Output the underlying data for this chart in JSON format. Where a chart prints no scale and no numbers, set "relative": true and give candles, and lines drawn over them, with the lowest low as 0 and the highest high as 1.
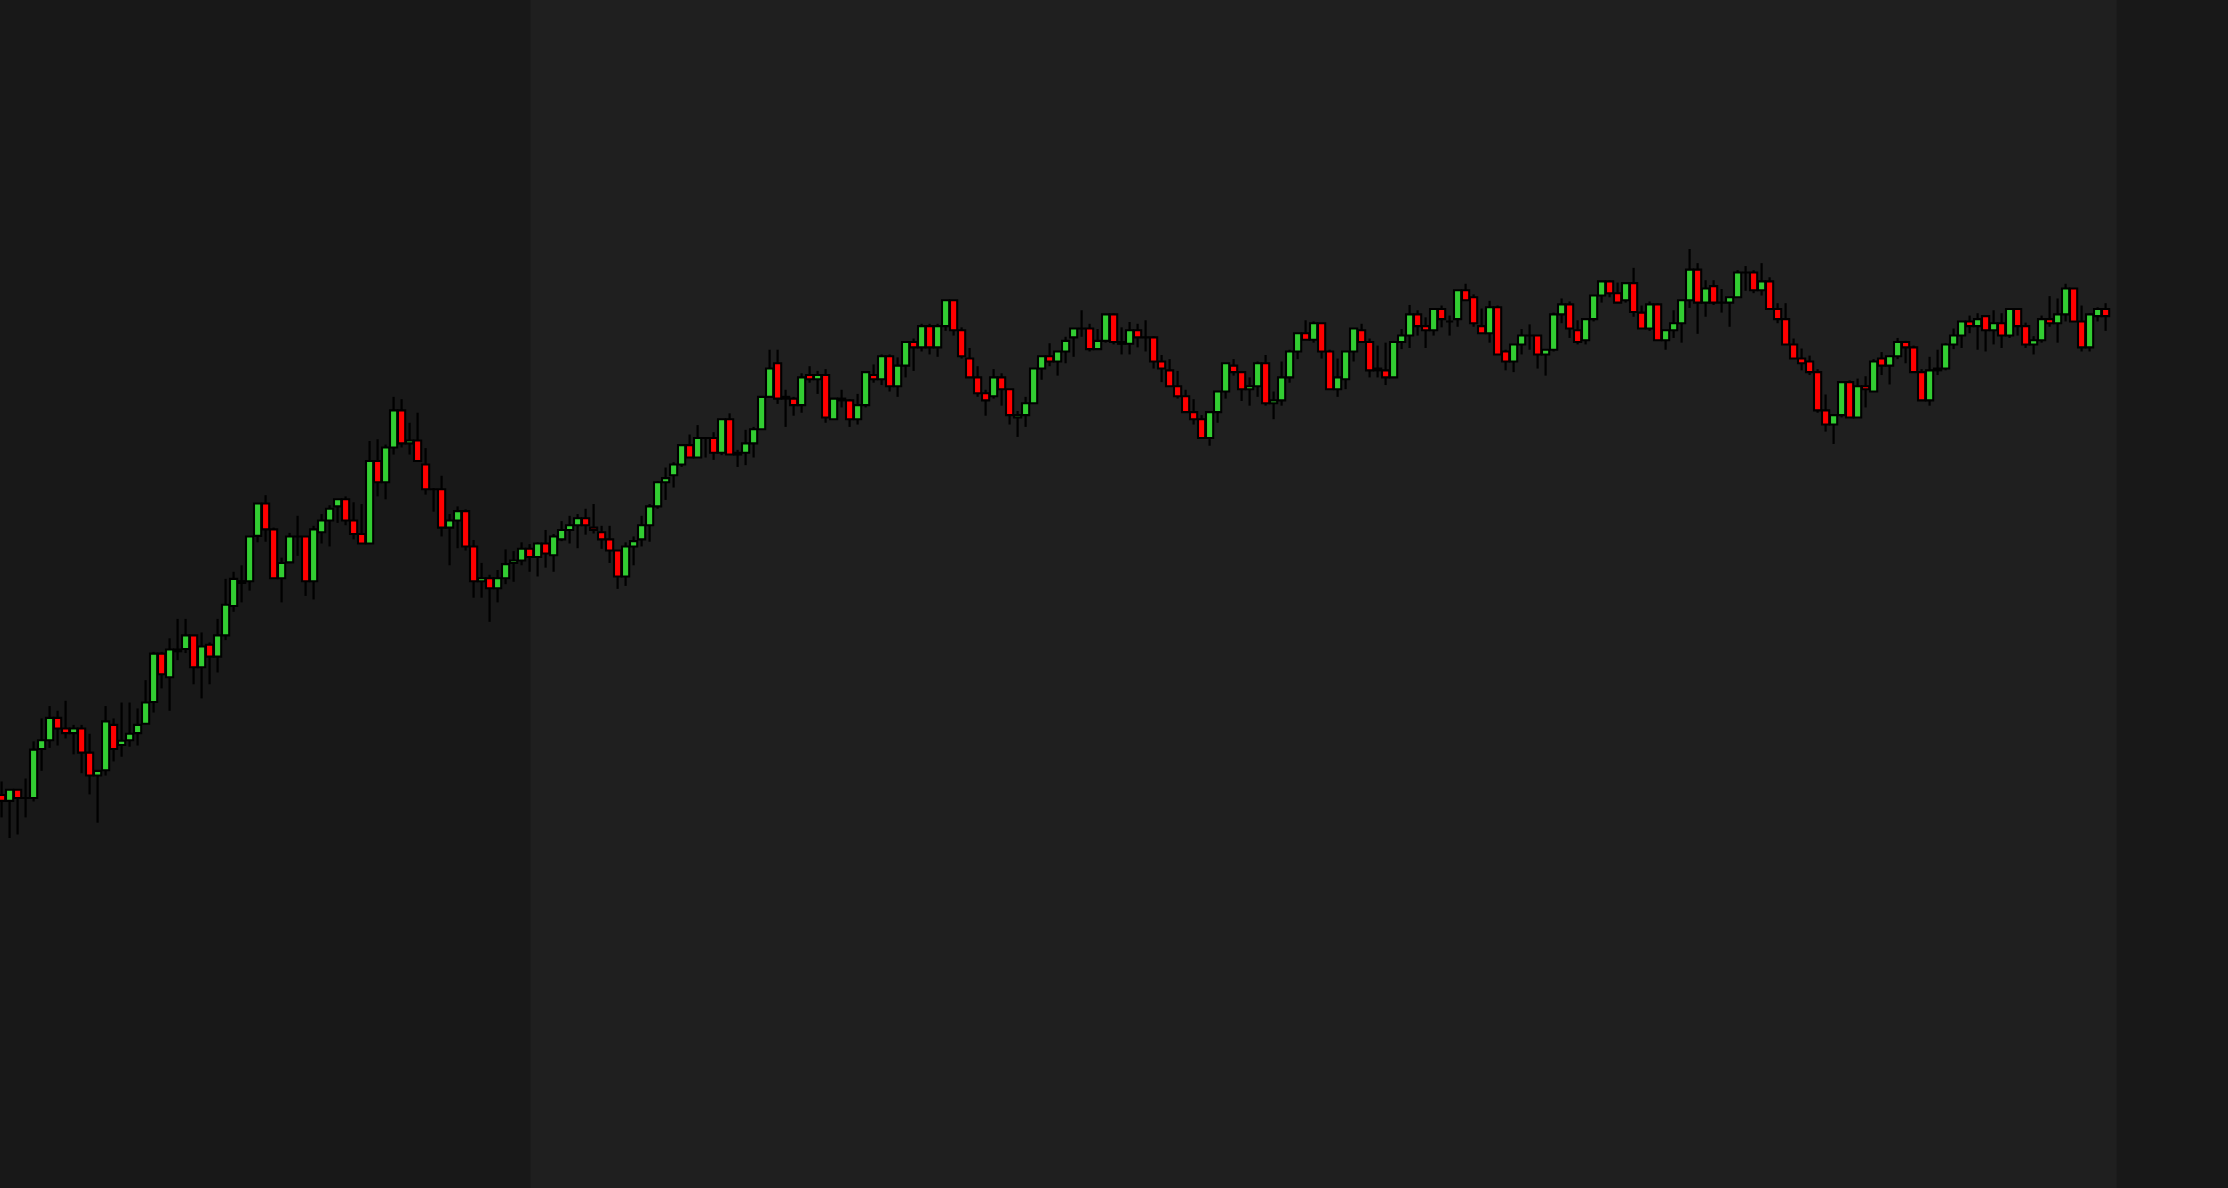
{
  "chart_data": {
    "type": "candlestick",
    "relative": true,
    "categories": [
      null,
      null,
      null,
      null,
      null,
      null,
      null,
      null,
      null,
      null,
      null,
      null,
      null,
      null,
      null,
      null,
      null,
      null,
      null,
      null,
      null,
      null,
      null,
      null,
      null,
      null,
      null,
      null,
      null,
      null,
      null,
      null,
      null,
      null,
      null,
      null,
      null,
      null,
      null,
      null,
      null,
      null,
      null,
      null,
      null,
      null,
      null,
      null,
      null,
      null,
      null,
      null,
      null,
      null,
      null,
      null,
      null,
      null,
      null,
      null,
      null,
      null,
      null,
      null,
      null,
      null,
      null,
      null,
      null,
      null,
      null,
      null,
      null,
      null,
      null,
      null,
      null,
      null,
      null,
      null,
      null,
      null,
      null,
      null,
      null,
      null,
      null,
      null,
      null,
      null,
      null,
      null,
      null,
      null,
      null,
      null,
      null,
      null,
      null,
      null,
      null,
      null,
      null,
      null,
      null,
      null,
      null,
      null,
      null,
      null,
      null,
      null,
      null,
      null,
      null,
      null,
      null,
      null,
      null,
      null,
      null,
      null,
      null,
      null,
      null,
      null,
      null,
      null,
      null,
      null,
      null,
      null,
      null,
      null,
      null,
      null,
      null,
      null,
      null,
      null,
      null,
      null,
      null,
      null,
      null,
      null,
      null,
      null,
      null,
      null,
      null,
      null,
      null,
      null,
      null,
      null,
      null,
      null,
      null,
      null,
      null,
      null,
      null,
      null,
      null,
      null,
      null,
      null,
      null,
      null,
      null,
      null,
      null,
      null,
      null,
      null,
      null,
      null,
      null,
      null,
      null,
      null,
      null,
      null,
      null,
      null,
      null,
      null,
      null,
      null,
      null,
      null,
      null,
      null,
      null,
      null,
      null,
      null,
      null,
      null,
      null,
      null,
      null,
      null,
      null,
      null,
      null,
      null,
      null,
      null,
      null,
      null,
      null,
      null,
      null,
      null,
      null,
      null,
      null,
      null,
      null,
      null,
      null,
      null,
      null,
      null,
      null,
      null,
      null,
      null,
      null,
      null,
      null,
      null,
      null,
      null,
      null,
      null,
      null,
      null,
      null,
      null,
      null,
      null,
      null,
      null,
      null,
      null,
      null,
      null,
      null,
      null,
      null,
      null,
      null,
      null,
      null,
      null,
      null,
      null,
      null,
      null,
      null,
      null
    ],
    "ohlc": [
      [
        0.073,
        0.096,
        0.035,
        0.063
      ],
      [
        0.063,
        0.082,
        0,
        0.082
      ],
      [
        0.082,
        0.082,
        0.006,
        0.068
      ],
      [
        0.068,
        0.101,
        0.035,
        0.068
      ],
      [
        0.068,
        0.164,
        0.062,
        0.15
      ],
      [
        0.151,
        0.203,
        0.114,
        0.166
      ],
      [
        0.166,
        0.224,
        0.153,
        0.204
      ],
      [
        0.204,
        0.216,
        0.157,
        0.186
      ],
      [
        0.186,
        0.233,
        0.169,
        0.178
      ],
      [
        0.178,
        0.192,
        0.142,
        0.186
      ],
      [
        0.186,
        0.192,
        0.11,
        0.145
      ],
      [
        0.145,
        0.177,
        0.074,
        0.106
      ],
      [
        0.106,
        0.114,
        0.026,
        0.114
      ],
      [
        0.115,
        0.224,
        0.106,
        0.198
      ],
      [
        0.192,
        0.203,
        0.13,
        0.151
      ],
      [
        0.158,
        0.23,
        0.138,
        0.165
      ],
      [
        0.166,
        0.23,
        0.155,
        0.177
      ],
      [
        0.178,
        0.22,
        0.157,
        0.192
      ],
      [
        0.194,
        0.268,
        0.194,
        0.23
      ],
      [
        0.231,
        0.316,
        0.213,
        0.313
      ],
      [
        0.313,
        0.316,
        0.254,
        0.278
      ],
      [
        0.273,
        0.339,
        0.216,
        0.32
      ],
      [
        0.32,
        0.372,
        0.302,
        0.317
      ],
      [
        0.321,
        0.372,
        0.314,
        0.344
      ],
      [
        0.344,
        0.344,
        0.261,
        0.29
      ],
      [
        0.29,
        0.349,
        0.237,
        0.325
      ],
      [
        0.328,
        0.332,
        0.261,
        0.308
      ],
      [
        0.308,
        0.372,
        0.281,
        0.344
      ],
      [
        0.344,
        0.44,
        0.336,
        0.396
      ],
      [
        0.394,
        0.452,
        0.384,
        0.44
      ],
      [
        0.433,
        0.463,
        0.4,
        0.436
      ],
      [
        0.436,
        0.512,
        0.42,
        0.512
      ],
      [
        0.513,
        0.568,
        0.502,
        0.568
      ],
      [
        0.568,
        0.582,
        0.503,
        0.524
      ],
      [
        0.524,
        0.527,
        0.441,
        0.441
      ],
      [
        0.441,
        0.476,
        0.4,
        0.467
      ],
      [
        0.468,
        0.518,
        0.468,
        0.512
      ],
      [
        0.512,
        0.547,
        0.479,
        0.512
      ],
      [
        0.512,
        0.512,
        0.411,
        0.436
      ],
      [
        0.436,
        0.53,
        0.405,
        0.524
      ],
      [
        0.519,
        0.55,
        0.5,
        0.539
      ],
      [
        0.539,
        0.565,
        0.495,
        0.559
      ],
      [
        0.563,
        0.575,
        0.535,
        0.575
      ],
      [
        0.575,
        0.58,
        0.531,
        0.539
      ],
      [
        0.539,
        0.57,
        0.507,
        0.516
      ],
      [
        0.516,
        0.567,
        0.5,
        0.5
      ],
      [
        0.5,
        0.674,
        0.5,
        0.64
      ],
      [
        0.64,
        0.677,
        0.58,
        0.604
      ],
      [
        0.604,
        0.668,
        0.575,
        0.663
      ],
      [
        0.663,
        0.749,
        0.651,
        0.726
      ],
      [
        0.726,
        0.745,
        0.663,
        0.67
      ],
      [
        0.67,
        0.705,
        0.651,
        0.675
      ],
      [
        0.675,
        0.722,
        0.64,
        0.64
      ],
      [
        0.634,
        0.662,
        0.583,
        0.592
      ],
      [
        0.592,
        0.594,
        0.554,
        0.592
      ],
      [
        0.592,
        0.615,
        0.512,
        0.527
      ],
      [
        0.527,
        0.55,
        0.463,
        0.539
      ],
      [
        0.539,
        0.563,
        0.492,
        0.555
      ],
      [
        0.555,
        0.558,
        0.488,
        0.495
      ],
      [
        0.495,
        0.506,
        0.408,
        0.436
      ],
      [
        0.436,
        0.467,
        0.408,
        0.441
      ],
      [
        0.441,
        0.447,
        0.367,
        0.424
      ],
      [
        0.424,
        0.455,
        0.4,
        0.441
      ],
      [
        0.441,
        0.49,
        0.431,
        0.465
      ],
      [
        0.467,
        0.487,
        0.435,
        0.471
      ],
      [
        0.471,
        0.502,
        0.463,
        0.491
      ],
      [
        0.491,
        0.499,
        0.452,
        0.477
      ],
      [
        0.477,
        0.502,
        0.444,
        0.5
      ],
      [
        0.5,
        0.523,
        0.459,
        0.483
      ],
      [
        0.48,
        0.516,
        0.452,
        0.512
      ],
      [
        0.507,
        0.538,
        0.504,
        0.523
      ],
      [
        0.523,
        0.547,
        0.5,
        0.531
      ],
      [
        0.531,
        0.55,
        0.492,
        0.543
      ],
      [
        0.543,
        0.559,
        0.515,
        0.531
      ],
      [
        0.527,
        0.567,
        0.517,
        0.523
      ],
      [
        0.519,
        0.53,
        0.491,
        0.507
      ],
      [
        0.507,
        0.53,
        0.467,
        0.488
      ],
      [
        0.488,
        0.488,
        0.423,
        0.444
      ],
      [
        0.444,
        0.502,
        0.428,
        0.495
      ],
      [
        0.495,
        0.512,
        0.463,
        0.504
      ],
      [
        0.507,
        0.547,
        0.495,
        0.531
      ],
      [
        0.531,
        0.567,
        0.503,
        0.563
      ],
      [
        0.563,
        0.606,
        0.559,
        0.604
      ],
      [
        0.604,
        0.629,
        0.574,
        0.611
      ],
      [
        0.616,
        0.638,
        0.595,
        0.634
      ],
      [
        0.634,
        0.668,
        0.63,
        0.667
      ],
      [
        0.667,
        0.685,
        0.646,
        0.646
      ],
      [
        0.646,
        0.701,
        0.646,
        0.679
      ],
      [
        0.679,
        0.679,
        0.646,
        0.679
      ],
      [
        0.679,
        0.689,
        0.642,
        0.654
      ],
      [
        0.654,
        0.711,
        0.65,
        0.711
      ],
      [
        0.711,
        0.721,
        0.651,
        0.651
      ],
      [
        0.651,
        0.659,
        0.63,
        0.654
      ],
      [
        0.654,
        0.693,
        0.633,
        0.67
      ],
      [
        0.67,
        0.698,
        0.646,
        0.694
      ],
      [
        0.694,
        0.749,
        0.694,
        0.749
      ],
      [
        0.749,
        0.829,
        0.749,
        0.797
      ],
      [
        0.806,
        0.829,
        0.737,
        0.746
      ],
      [
        0.749,
        0.761,
        0.698,
        0.746
      ],
      [
        0.746,
        0.749,
        0.717,
        0.735
      ],
      [
        0.735,
        0.789,
        0.722,
        0.782
      ],
      [
        0.786,
        0.801,
        0.773,
        0.779
      ],
      [
        0.779,
        0.793,
        0.754,
        0.786
      ],
      [
        0.786,
        0.796,
        0.705,
        0.714
      ],
      [
        0.711,
        0.746,
        0.711,
        0.746
      ],
      [
        0.746,
        0.761,
        0.731,
        0.743
      ],
      [
        0.743,
        0.745,
        0.698,
        0.711
      ],
      [
        0.711,
        0.754,
        0.702,
        0.735
      ],
      [
        0.735,
        0.791,
        0.731,
        0.791
      ],
      [
        0.786,
        0.804,
        0.773,
        0.779
      ],
      [
        0.779,
        0.821,
        0.769,
        0.818
      ],
      [
        0.818,
        0.821,
        0.758,
        0.767
      ],
      [
        0.767,
        0.816,
        0.749,
        0.802
      ],
      [
        0.802,
        0.842,
        0.782,
        0.842
      ],
      [
        0.842,
        0.848,
        0.793,
        0.833
      ],
      [
        0.833,
        0.873,
        0.826,
        0.869
      ],
      [
        0.869,
        0.873,
        0.821,
        0.833
      ],
      [
        0.833,
        0.873,
        0.817,
        0.869
      ],
      [
        0.869,
        0.913,
        0.861,
        0.913
      ],
      [
        0.913,
        0.913,
        0.853,
        0.862
      ],
      [
        0.862,
        0.867,
        0.814,
        0.818
      ],
      [
        0.814,
        0.832,
        0.782,
        0.782
      ],
      [
        0.782,
        0.801,
        0.749,
        0.755
      ],
      [
        0.755,
        0.761,
        0.717,
        0.743
      ],
      [
        0.75,
        0.796,
        0.746,
        0.782
      ],
      [
        0.782,
        0.789,
        0.734,
        0.762
      ],
      [
        0.762,
        0.762,
        0.702,
        0.718
      ],
      [
        0.714,
        0.725,
        0.681,
        0.718
      ],
      [
        0.718,
        0.749,
        0.698,
        0.738
      ],
      [
        0.738,
        0.797,
        0.738,
        0.797
      ],
      [
        0.797,
        0.818,
        0.778,
        0.818
      ],
      [
        0.818,
        0.84,
        0.801,
        0.809
      ],
      [
        0.809,
        0.826,
        0.785,
        0.826
      ],
      [
        0.826,
        0.851,
        0.806,
        0.844
      ],
      [
        0.85,
        0.865,
        0.817,
        0.865
      ],
      [
        0.865,
        0.896,
        0.851,
        0.865
      ],
      [
        0.865,
        0.873,
        0.826,
        0.83
      ],
      [
        0.83,
        0.864,
        0.83,
        0.844
      ],
      [
        0.844,
        0.889,
        0.841,
        0.889
      ],
      [
        0.889,
        0.891,
        0.838,
        0.842
      ],
      [
        0.842,
        0.867,
        0.821,
        0.839
      ],
      [
        0.839,
        0.876,
        0.821,
        0.862
      ],
      [
        0.862,
        0.873,
        0.833,
        0.85
      ],
      [
        0.85,
        0.879,
        0.826,
        0.85
      ],
      [
        0.85,
        0.852,
        0.797,
        0.809
      ],
      [
        0.809,
        0.82,
        0.774,
        0.797
      ],
      [
        0.794,
        0.813,
        0.767,
        0.767
      ],
      [
        0.767,
        0.793,
        0.746,
        0.75
      ],
      [
        0.75,
        0.761,
        0.723,
        0.723
      ],
      [
        0.723,
        0.745,
        0.702,
        0.711
      ],
      [
        0.711,
        0.718,
        0.679,
        0.679
      ],
      [
        0.679,
        0.725,
        0.666,
        0.723
      ],
      [
        0.723,
        0.758,
        0.705,
        0.758
      ],
      [
        0.758,
        0.806,
        0.746,
        0.806
      ],
      [
        0.802,
        0.813,
        0.785,
        0.791
      ],
      [
        0.791,
        0.793,
        0.742,
        0.762
      ],
      [
        0.762,
        0.782,
        0.734,
        0.767
      ],
      [
        0.767,
        0.809,
        0.749,
        0.806
      ],
      [
        0.806,
        0.82,
        0.734,
        0.738
      ],
      [
        0.738,
        0.758,
        0.711,
        0.743
      ],
      [
        0.743,
        0.809,
        0.734,
        0.782
      ],
      [
        0.782,
        0.829,
        0.773,
        0.826
      ],
      [
        0.826,
        0.857,
        0.813,
        0.857
      ],
      [
        0.857,
        0.879,
        0.846,
        0.846
      ],
      [
        0.846,
        0.877,
        0.841,
        0.874
      ],
      [
        0.874,
        0.874,
        0.814,
        0.826
      ],
      [
        0.826,
        0.829,
        0.762,
        0.762
      ],
      [
        0.762,
        0.814,
        0.749,
        0.782
      ],
      [
        0.779,
        0.826,
        0.762,
        0.826
      ],
      [
        0.826,
        0.865,
        0.809,
        0.865
      ],
      [
        0.862,
        0.873,
        0.842,
        0.842
      ],
      [
        0.842,
        0.848,
        0.782,
        0.794
      ],
      [
        0.794,
        0.836,
        0.782,
        0.797
      ],
      [
        0.794,
        0.841,
        0.769,
        0.782
      ],
      [
        0.782,
        0.844,
        0.782,
        0.842
      ],
      [
        0.842,
        0.864,
        0.83,
        0.853
      ],
      [
        0.853,
        0.905,
        0.832,
        0.889
      ],
      [
        0.889,
        0.896,
        0.853,
        0.869
      ],
      [
        0.869,
        0.884,
        0.832,
        0.862
      ],
      [
        0.862,
        0.899,
        0.853,
        0.898
      ],
      [
        0.898,
        0.904,
        0.867,
        0.881
      ],
      [
        0.877,
        0.887,
        0.853,
        0.877
      ],
      [
        0.881,
        0.93,
        0.868,
        0.93
      ],
      [
        0.93,
        0.941,
        0.913,
        0.913
      ],
      [
        0.918,
        0.923,
        0.868,
        0.874
      ],
      [
        0.869,
        0.899,
        0.857,
        0.857
      ],
      [
        0.857,
        0.912,
        0.841,
        0.901
      ],
      [
        0.901,
        0.904,
        0.821,
        0.821
      ],
      [
        0.826,
        0.829,
        0.794,
        0.809
      ],
      [
        0.809,
        0.838,
        0.791,
        0.838
      ],
      [
        0.838,
        0.864,
        0.821,
        0.853
      ],
      [
        0.853,
        0.872,
        0.829,
        0.853
      ],
      [
        0.853,
        0.853,
        0.797,
        0.821
      ],
      [
        0.821,
        0.829,
        0.785,
        0.829
      ],
      [
        0.829,
        0.892,
        0.826,
        0.889
      ],
      [
        0.889,
        0.916,
        0.874,
        0.906
      ],
      [
        0.906,
        0.911,
        0.849,
        0.865
      ],
      [
        0.862,
        0.879,
        0.838,
        0.842
      ],
      [
        0.845,
        0.881,
        0.838,
        0.881
      ],
      [
        0.881,
        0.921,
        0.877,
        0.921
      ],
      [
        0.921,
        0.945,
        0.909,
        0.945
      ],
      [
        0.945,
        0.947,
        0.918,
        0.925
      ],
      [
        0.925,
        0.943,
        0.909,
        0.909
      ],
      [
        0.913,
        0.942,
        0.909,
        0.942
      ],
      [
        0.942,
        0.968,
        0.885,
        0.893
      ],
      [
        0.892,
        0.904,
        0.865,
        0.865
      ],
      [
        0.865,
        0.911,
        0.861,
        0.906
      ],
      [
        0.906,
        0.908,
        0.845,
        0.845
      ],
      [
        0.845,
        0.862,
        0.829,
        0.862
      ],
      [
        0.862,
        0.896,
        0.849,
        0.874
      ],
      [
        0.874,
        0.913,
        0.841,
        0.913
      ],
      [
        0.913,
        1,
        0.9,
        0.965
      ],
      [
        0.965,
        0.976,
        0.856,
        0.909
      ],
      [
        0.909,
        0.947,
        0.885,
        0.933
      ],
      [
        0.937,
        0.947,
        0.905,
        0.909
      ],
      [
        0.909,
        0.932,
        0.892,
        0.909
      ],
      [
        0.909,
        0.918,
        0.868,
        0.918
      ],
      [
        0.918,
        0.964,
        0.918,
        0.96
      ],
      [
        0.96,
        0.971,
        0.929,
        0.96
      ],
      [
        0.96,
        0.964,
        0.925,
        0.93
      ],
      [
        0.93,
        0.976,
        0.921,
        0.945
      ],
      [
        0.945,
        0.952,
        0.898,
        0.898
      ],
      [
        0.898,
        0.908,
        0.874,
        0.881
      ],
      [
        0.881,
        0.908,
        0.838,
        0.838
      ],
      [
        0.838,
        0.848,
        0.814,
        0.814
      ],
      [
        0.814,
        0.831,
        0.794,
        0.806
      ],
      [
        0.809,
        0.819,
        0.786,
        0.791
      ],
      [
        0.791,
        0.796,
        0.722,
        0.726
      ],
      [
        0.726,
        0.753,
        0.69,
        0.702
      ],
      [
        0.702,
        0.718,
        0.669,
        0.718
      ],
      [
        0.718,
        0.774,
        0.714,
        0.774
      ],
      [
        0.774,
        0.777,
        0.714,
        0.714
      ],
      [
        0.714,
        0.78,
        0.714,
        0.767
      ],
      [
        0.767,
        0.784,
        0.731,
        0.762
      ],
      [
        0.758,
        0.813,
        0.758,
        0.809
      ],
      [
        0.814,
        0.825,
        0.786,
        0.802
      ],
      [
        0.802,
        0.819,
        0.77,
        0.818
      ],
      [
        0.818,
        0.849,
        0.813,
        0.842
      ],
      [
        0.842,
        0.844,
        0.806,
        0.833
      ],
      [
        0.833,
        0.836,
        0.791,
        0.791
      ],
      [
        0.791,
        0.796,
        0.743,
        0.743
      ],
      [
        0.743,
        0.817,
        0.734,
        0.794
      ],
      [
        0.794,
        0.829,
        0.786,
        0.797
      ],
      [
        0.797,
        0.84,
        0.794,
        0.838
      ],
      [
        0.838,
        0.865,
        0.83,
        0.853
      ],
      [
        0.853,
        0.877,
        0.832,
        0.877
      ],
      [
        0.877,
        0.887,
        0.857,
        0.869
      ],
      [
        0.869,
        0.891,
        0.829,
        0.881
      ],
      [
        0.886,
        0.886,
        0.826,
        0.862
      ],
      [
        0.862,
        0.896,
        0.838,
        0.874
      ],
      [
        0.874,
        0.891,
        0.832,
        0.853
      ],
      [
        0.853,
        0.899,
        0.849,
        0.898
      ],
      [
        0.898,
        0.899,
        0.853,
        0.869
      ],
      [
        0.869,
        0.875,
        0.832,
        0.838
      ],
      [
        0.838,
        0.852,
        0.821,
        0.845
      ],
      [
        0.845,
        0.887,
        0.841,
        0.881
      ],
      [
        0.881,
        0.92,
        0.868,
        0.874
      ],
      [
        0.874,
        0.916,
        0.841,
        0.889
      ],
      [
        0.889,
        0.941,
        0.877,
        0.933
      ],
      [
        0.933,
        0.933,
        0.877,
        0.877
      ],
      [
        0.877,
        0.904,
        0.826,
        0.833
      ],
      [
        0.833,
        0.891,
        0.826,
        0.889
      ],
      [
        0.886,
        0.901,
        0.877,
        0.898
      ],
      [
        0.898,
        0.908,
        0.861,
        0.886
      ]
    ],
    "colors": [
      "#ff0000",
      "#32cd32",
      "#ff0000",
      "#000000",
      "#32cd32",
      "#32cd32",
      "#32cd32",
      "#ff0000",
      "#ff0000",
      "#32cd32",
      "#ff0000",
      "#ff0000",
      "#32cd32",
      "#32cd32",
      "#ff0000",
      "#32cd32",
      "#32cd32",
      "#32cd32",
      "#32cd32",
      "#32cd32",
      "#ff0000",
      "#32cd32",
      "#ff0000",
      "#32cd32",
      "#ff0000",
      "#32cd32",
      "#ff0000",
      "#32cd32",
      "#32cd32",
      "#32cd32",
      "#32cd32",
      "#32cd32",
      "#32cd32",
      "#ff0000",
      "#ff0000",
      "#32cd32",
      "#32cd32",
      "#000000",
      "#ff0000",
      "#32cd32",
      "#32cd32",
      "#32cd32",
      "#32cd32",
      "#ff0000",
      "#ff0000",
      "#ff0000",
      "#32cd32",
      "#ff0000",
      "#32cd32",
      "#32cd32",
      "#ff0000",
      "#32cd32",
      "#ff0000",
      "#ff0000",
      "#000000",
      "#ff0000",
      "#32cd32",
      "#32cd32",
      "#ff0000",
      "#ff0000",
      "#32cd32",
      "#ff0000",
      "#32cd32",
      "#32cd32",
      "#32cd32",
      "#32cd32",
      "#ff0000",
      "#32cd32",
      "#ff0000",
      "#32cd32",
      "#32cd32",
      "#32cd32",
      "#32cd32",
      "#ff0000",
      "#ff0000",
      "#ff0000",
      "#ff0000",
      "#ff0000",
      "#32cd32",
      "#32cd32",
      "#32cd32",
      "#32cd32",
      "#32cd32",
      "#32cd32",
      "#32cd32",
      "#32cd32",
      "#ff0000",
      "#32cd32",
      "#000000",
      "#ff0000",
      "#32cd32",
      "#ff0000",
      "#32cd32",
      "#32cd32",
      "#32cd32",
      "#32cd32",
      "#32cd32",
      "#ff0000",
      "#ff0000",
      "#ff0000",
      "#32cd32",
      "#ff0000",
      "#32cd32",
      "#ff0000",
      "#32cd32",
      "#ff0000",
      "#ff0000",
      "#32cd32",
      "#32cd32",
      "#ff0000",
      "#32cd32",
      "#ff0000",
      "#32cd32",
      "#32cd32",
      "#ff0000",
      "#32cd32",
      "#ff0000",
      "#32cd32",
      "#32cd32",
      "#ff0000",
      "#ff0000",
      "#ff0000",
      "#ff0000",
      "#ff0000",
      "#32cd32",
      "#ff0000",
      "#ff0000",
      "#32cd32",
      "#32cd32",
      "#32cd32",
      "#32cd32",
      "#ff0000",
      "#32cd32",
      "#32cd32",
      "#32cd32",
      "#000000",
      "#ff0000",
      "#32cd32",
      "#32cd32",
      "#ff0000",
      "#ff0000",
      "#32cd32",
      "#ff0000",
      "#000000",
      "#ff0000",
      "#ff0000",
      "#ff0000",
      "#ff0000",
      "#ff0000",
      "#ff0000",
      "#ff0000",
      "#32cd32",
      "#32cd32",
      "#32cd32",
      "#ff0000",
      "#ff0000",
      "#32cd32",
      "#32cd32",
      "#ff0000",
      "#32cd32",
      "#32cd32",
      "#32cd32",
      "#32cd32",
      "#ff0000",
      "#32cd32",
      "#ff0000",
      "#ff0000",
      "#32cd32",
      "#32cd32",
      "#32cd32",
      "#ff0000",
      "#ff0000",
      "#32cd32",
      "#ff0000",
      "#32cd32",
      "#32cd32",
      "#32cd32",
      "#ff0000",
      "#ff0000",
      "#32cd32",
      "#ff0000",
      "#000000",
      "#32cd32",
      "#ff0000",
      "#ff0000",
      "#ff0000",
      "#32cd32",
      "#ff0000",
      "#ff0000",
      "#32cd32",
      "#32cd32",
      "#000000",
      "#ff0000",
      "#32cd32",
      "#32cd32",
      "#32cd32",
      "#ff0000",
      "#ff0000",
      "#32cd32",
      "#32cd32",
      "#32cd32",
      "#ff0000",
      "#ff0000",
      "#32cd32",
      "#ff0000",
      "#ff0000",
      "#32cd32",
      "#ff0000",
      "#32cd32",
      "#32cd32",
      "#32cd32",
      "#32cd32",
      "#ff0000",
      "#32cd32",
      "#ff0000",
      "#000000",
      "#32cd32",
      "#32cd32",
      "#000000",
      "#ff0000",
      "#32cd32",
      "#ff0000",
      "#ff0000",
      "#ff0000",
      "#ff0000",
      "#ff0000",
      "#ff0000",
      "#ff0000",
      "#ff0000",
      "#32cd32",
      "#32cd32",
      "#ff0000",
      "#32cd32",
      "#ff0000",
      "#32cd32",
      "#ff0000",
      "#32cd32",
      "#32cd32",
      "#ff0000",
      "#ff0000",
      "#ff0000",
      "#32cd32",
      "#32cd32",
      "#32cd32",
      "#32cd32",
      "#32cd32",
      "#ff0000",
      "#32cd32",
      "#ff0000",
      "#32cd32",
      "#ff0000",
      "#32cd32",
      "#ff0000",
      "#ff0000",
      "#32cd32",
      "#32cd32",
      "#ff0000",
      "#32cd32",
      "#32cd32",
      "#ff0000",
      "#ff0000",
      "#32cd32",
      "#32cd32",
      "#ff0000"
    ]
  }
}
